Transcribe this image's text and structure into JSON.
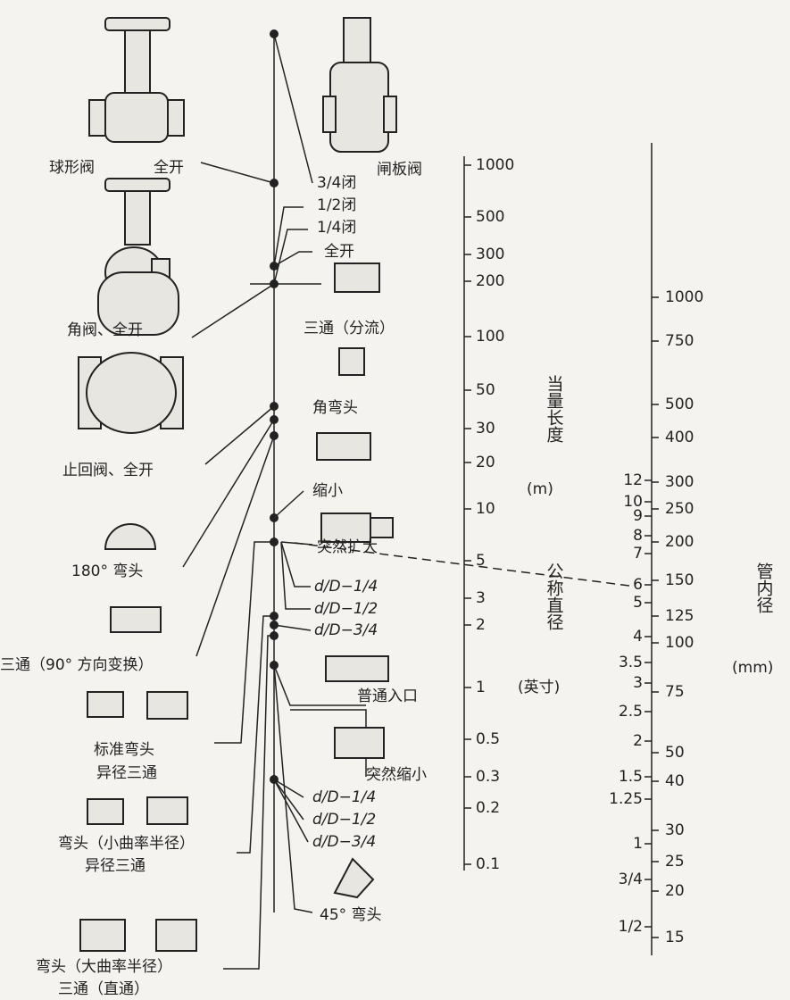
{
  "left_labels": [
    "球形阀",
    "全开",
    "角阀、全开",
    "止回阀、全开",
    "180° 弯头",
    "三通（90° 方向变换）",
    "标准弯头",
    "异径三通",
    "弯头（小曲率半径）",
    "异径三通",
    "弯头（大曲率半径）",
    "三通（直通）"
  ],
  "middle_labels": [
    "闸板阀",
    "3/4闭",
    "1/2闭",
    "1/4闭",
    "全开",
    "三通（分流）",
    "角弯头",
    "缩小",
    "突然扩大",
    "d/D−1/4",
    "d/D−1/2",
    "d/D−3/4",
    "普通入口",
    "突然缩小",
    "d/D−1/4",
    "d/D−1/2",
    "d/D−3/4",
    "45° 弯头"
  ],
  "length_scale": {
    "title": "当量长度",
    "unit": "(m)",
    "ticks": [
      "1000",
      "500",
      "300",
      "200",
      "100",
      "50",
      "30",
      "20",
      "10",
      "5",
      "3",
      "2",
      "1",
      "0.5",
      "0.3",
      "0.2",
      "0.1"
    ]
  },
  "inch_scale": {
    "title": "公称直径",
    "unit": "(英寸)",
    "ticks": [
      "12",
      "10",
      "9",
      "8",
      "7",
      "6",
      "5",
      "4",
      "3.5",
      "3",
      "2.5",
      "2",
      "1.5",
      "1.25",
      "1",
      "3/4",
      "1/2"
    ]
  },
  "mm_scale": {
    "title": "管内径",
    "unit": "(mm)",
    "ticks": [
      "1000",
      "750",
      "500",
      "400",
      "300",
      "250",
      "200",
      "150",
      "125",
      "100",
      "75",
      "50",
      "40",
      "30",
      "25",
      "20",
      "15"
    ]
  }
}
